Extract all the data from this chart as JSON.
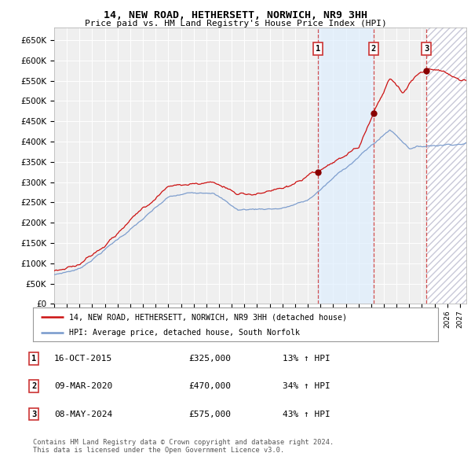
{
  "title": "14, NEW ROAD, HETHERSETT, NORWICH, NR9 3HH",
  "subtitle": "Price paid vs. HM Land Registry's House Price Index (HPI)",
  "ylim": [
    0,
    680000
  ],
  "yticks": [
    0,
    50000,
    100000,
    150000,
    200000,
    250000,
    300000,
    350000,
    400000,
    450000,
    500000,
    550000,
    600000,
    650000
  ],
  "xlim_start": 1995.0,
  "xlim_end": 2027.5,
  "sale_dates": [
    2015.79,
    2020.19,
    2024.36
  ],
  "sale_prices": [
    325000,
    470000,
    575000
  ],
  "sale_labels": [
    "1",
    "2",
    "3"
  ],
  "hpi_color": "#7799cc",
  "price_color": "#cc1111",
  "marker_color": "#880000",
  "shade_color": "#ddeeff",
  "dashed_color": "#cc3333",
  "legend_house_label": "14, NEW ROAD, HETHERSETT, NORWICH, NR9 3HH (detached house)",
  "legend_hpi_label": "HPI: Average price, detached house, South Norfolk",
  "table_rows": [
    [
      "1",
      "16-OCT-2015",
      "£325,000",
      "13% ↑ HPI"
    ],
    [
      "2",
      "09-MAR-2020",
      "£470,000",
      "34% ↑ HPI"
    ],
    [
      "3",
      "08-MAY-2024",
      "£575,000",
      "43% ↑ HPI"
    ]
  ],
  "footnote": "Contains HM Land Registry data © Crown copyright and database right 2024.\nThis data is licensed under the Open Government Licence v3.0."
}
